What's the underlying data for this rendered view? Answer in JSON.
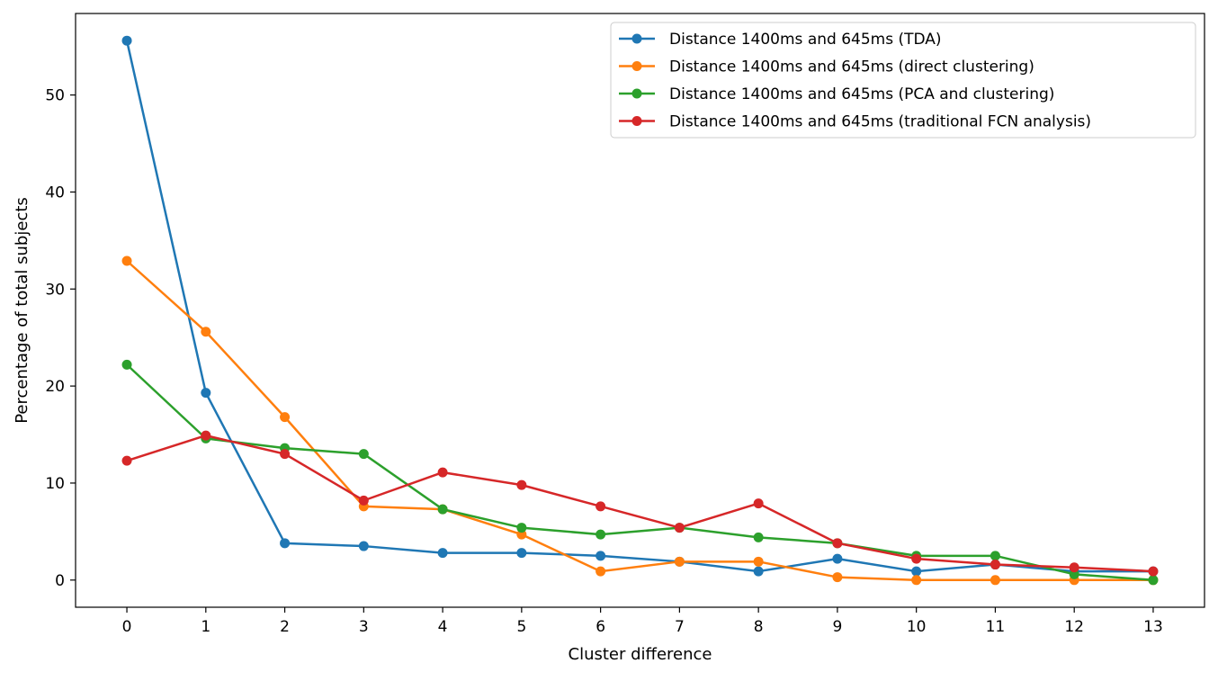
{
  "chart_data": {
    "type": "line",
    "xlabel": "Cluster difference",
    "ylabel": "Percentage of total subjects",
    "x": [
      0,
      1,
      2,
      3,
      4,
      5,
      6,
      7,
      8,
      9,
      10,
      11,
      12,
      13
    ],
    "xlim": [
      -0.65,
      13.65
    ],
    "ylim": [
      -2.8,
      58.4
    ],
    "yticks": [
      0,
      10,
      20,
      30,
      40,
      50
    ],
    "legend_position": "top-right",
    "grid": false,
    "series": [
      {
        "name": "Distance 1400ms and 645ms (TDA)",
        "color": "#1f77b4",
        "values": [
          55.6,
          19.3,
          3.8,
          3.5,
          2.8,
          2.8,
          2.5,
          1.9,
          0.9,
          2.2,
          0.9,
          1.6,
          0.9,
          0.9
        ]
      },
      {
        "name": "Distance 1400ms and 645ms (direct clustering)",
        "color": "#ff7f0e",
        "values": [
          32.9,
          25.6,
          16.8,
          7.6,
          7.3,
          4.7,
          0.9,
          1.9,
          1.9,
          0.3,
          0.0,
          0.0,
          0.0,
          0.0
        ]
      },
      {
        "name": "Distance 1400ms and 645ms (PCA and clustering)",
        "color": "#2ca02c",
        "values": [
          22.2,
          14.6,
          13.6,
          13.0,
          7.3,
          5.4,
          4.7,
          5.4,
          4.4,
          3.8,
          2.5,
          2.5,
          0.6,
          0.0
        ]
      },
      {
        "name": "Distance 1400ms and 645ms (traditional FCN analysis)",
        "color": "#d62728",
        "values": [
          12.3,
          14.9,
          13.0,
          8.2,
          11.1,
          9.8,
          7.6,
          5.4,
          7.9,
          3.8,
          2.2,
          1.6,
          1.3,
          0.9
        ]
      }
    ]
  }
}
